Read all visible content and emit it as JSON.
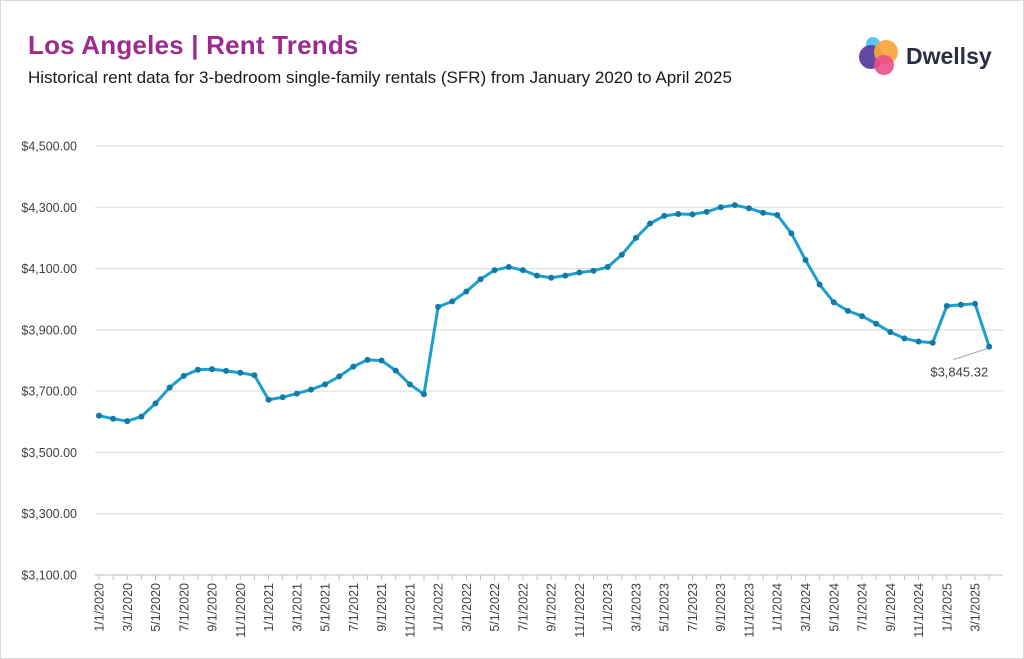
{
  "title": "Los Angeles | Rent Trends",
  "subtitle": "Historical rent data for 3-bedroom single-family rentals (SFR) from January 2020 to April 2025",
  "brand": {
    "name": "Dwellsy"
  },
  "colors": {
    "title": "#9b2b8f",
    "line": "#1b9fd0",
    "marker": "#137aa6",
    "grid": "#d9d9d9"
  },
  "chart_data": {
    "type": "line",
    "xlabel": "",
    "ylabel": "",
    "ylim": [
      3100,
      4500
    ],
    "yticks": [
      3100,
      3300,
      3500,
      3700,
      3900,
      4100,
      4300,
      4500
    ],
    "ytick_labels": [
      "$3,100.00",
      "$3,300.00",
      "$3,500.00",
      "$3,700.00",
      "$3,900.00",
      "$4,100.00",
      "$4,300.00",
      "$4,500.00"
    ],
    "x_labels": [
      "1/1/2020",
      "3/1/2020",
      "5/1/2020",
      "7/1/2020",
      "9/1/2020",
      "11/1/2020",
      "1/1/2021",
      "3/1/2021",
      "5/1/2021",
      "7/1/2021",
      "9/1/2021",
      "11/1/2021",
      "1/1/2022",
      "3/1/2022",
      "5/1/2022",
      "7/1/2022",
      "9/1/2022",
      "11/1/2022",
      "1/1/2023",
      "3/1/2023",
      "5/1/2023",
      "7/1/2023",
      "9/1/2023",
      "11/1/2023",
      "1/1/2024",
      "3/1/2024",
      "5/1/2024",
      "7/1/2024",
      "9/1/2024",
      "11/1/2024",
      "1/1/2025",
      "3/1/2025"
    ],
    "series": [
      {
        "values": [
          3620,
          3610,
          3602,
          3617,
          3660,
          3712,
          3750,
          3770,
          3772,
          3766,
          3760,
          3752,
          3672,
          3680,
          3692,
          3705,
          3722,
          3748,
          3780,
          3802,
          3800,
          3767,
          3722,
          3690,
          3975,
          3993,
          4025,
          4065,
          4095,
          4105,
          4095,
          4077,
          4070,
          4077,
          4087,
          4093,
          4105,
          4145,
          4200,
          4247,
          4272,
          4278,
          4277,
          4285,
          4300,
          4307,
          4297,
          4282,
          4275,
          4215,
          4128,
          4048,
          3990,
          3962,
          3945,
          3920,
          3893,
          3872,
          3862,
          3858,
          3978,
          3982,
          3985,
          3845.32
        ]
      }
    ],
    "annotation": {
      "text": "$3,845.32",
      "value": 3845.32
    },
    "grid": true,
    "legend": "none"
  }
}
